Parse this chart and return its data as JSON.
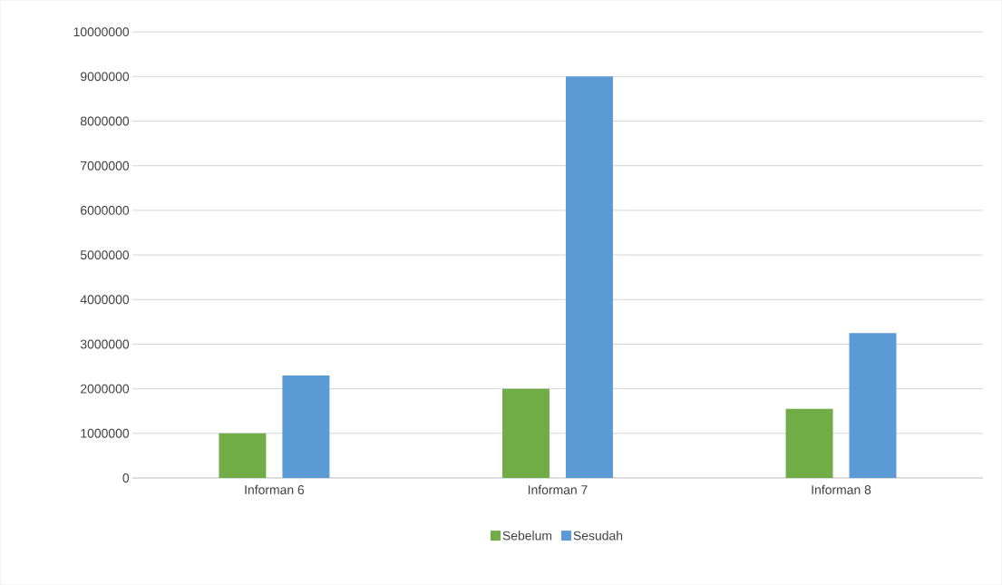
{
  "chart_data": {
    "type": "bar",
    "categories": [
      "Informan 6",
      "Informan 7",
      "Informan 8"
    ],
    "series": [
      {
        "name": "Sebelum",
        "color": "#70ad47",
        "values": [
          1000000,
          2000000,
          1550000
        ]
      },
      {
        "name": "Sesudah",
        "color": "#5b9bd5",
        "values": [
          2300000,
          9000000,
          3250000
        ]
      }
    ],
    "ylim": [
      0,
      10000000
    ],
    "yticks": [
      0,
      1000000,
      2000000,
      3000000,
      4000000,
      5000000,
      6000000,
      7000000,
      8000000,
      9000000,
      10000000
    ],
    "grid": "y",
    "legend": "bottom"
  }
}
